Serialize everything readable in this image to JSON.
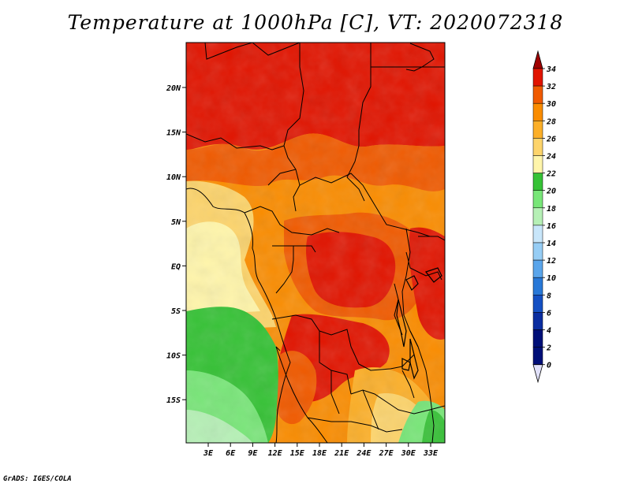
{
  "title": "Temperature at 1000hPa [C], VT: 2020072318",
  "credit": "GrADS: IGES/COLA",
  "map": {
    "lat_ticks": [
      "20N",
      "15N",
      "10N",
      "5N",
      "EQ",
      "5S",
      "10S",
      "15S"
    ],
    "lon_ticks": [
      "3E",
      "6E",
      "9E",
      "12E",
      "15E",
      "18E",
      "21E",
      "24E",
      "27E",
      "30E",
      "33E"
    ]
  },
  "colorbar": {
    "levels": [
      "34",
      "32",
      "30",
      "28",
      "26",
      "24",
      "22",
      "20",
      "18",
      "16",
      "14",
      "12",
      "10",
      "8",
      "6",
      "4",
      "2",
      "0"
    ],
    "colors": [
      "#a00000",
      "#e11400",
      "#f05a00",
      "#fa8c00",
      "#fcaf28",
      "#fdd46b",
      "#fff5aa",
      "#36c236",
      "#78e678",
      "#b6f0b6",
      "#c8e6fa",
      "#96cdf5",
      "#5aa5eb",
      "#2878d7",
      "#1450c3",
      "#0a2da0",
      "#000f78",
      "#e1e1fa"
    ]
  }
}
